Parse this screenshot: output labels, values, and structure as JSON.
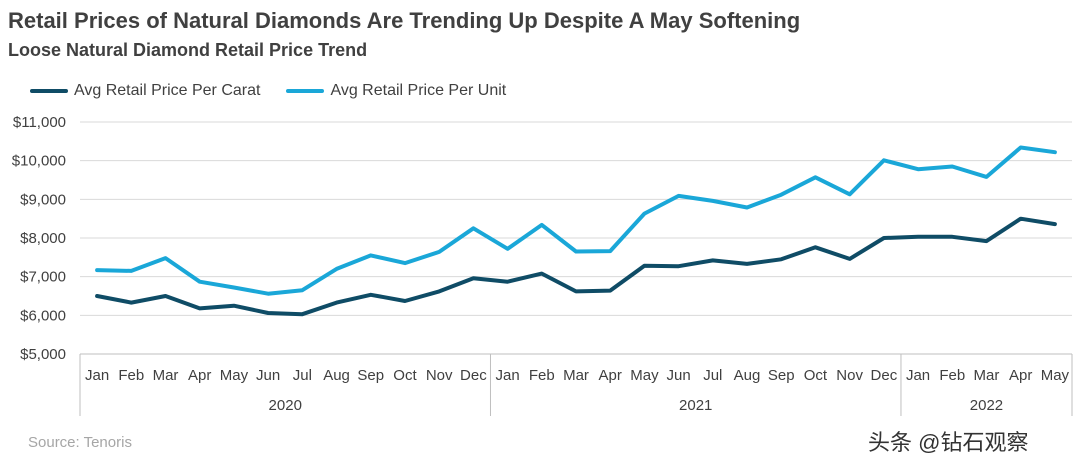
{
  "title": "Retail Prices of Natural Diamonds Are Trending Up Despite A May Softening",
  "subtitle": "Loose Natural Diamond Retail Price Trend",
  "source": "Source: Tenoris",
  "watermark": "头条 @钻石观察",
  "colors": {
    "per_carat": "#0f4c66",
    "per_unit": "#1aa7d8"
  },
  "chart_data": {
    "type": "line",
    "title": "Retail Prices of Natural Diamonds Are Trending Up Despite A May Softening",
    "subtitle": "Loose Natural Diamond Retail Price Trend",
    "xlabel": "",
    "ylabel": "",
    "ylim": [
      5000,
      11000
    ],
    "yticks": [
      5000,
      6000,
      7000,
      8000,
      9000,
      10000,
      11000
    ],
    "ytick_labels": [
      "$5,000",
      "$6,000",
      "$7,000",
      "$8,000",
      "$9,000",
      "$10,000",
      "$11,000"
    ],
    "grid": true,
    "legend_position": "top-left",
    "categories": [
      "Jan",
      "Feb",
      "Mar",
      "Apr",
      "May",
      "Jun",
      "Jul",
      "Aug",
      "Sep",
      "Oct",
      "Nov",
      "Dec",
      "Jan",
      "Feb",
      "Mar",
      "Apr",
      "May",
      "Jun",
      "Jul",
      "Aug",
      "Sep",
      "Oct",
      "Nov",
      "Dec",
      "Jan",
      "Feb",
      "Mar",
      "Apr",
      "May"
    ],
    "groups": [
      {
        "label": "2020",
        "count": 12
      },
      {
        "label": "2021",
        "count": 12
      },
      {
        "label": "2022",
        "count": 5
      }
    ],
    "series": [
      {
        "name": "Avg Retail Price Per Carat",
        "values": [
          6500,
          6330,
          6500,
          6180,
          6250,
          6060,
          6030,
          6330,
          6530,
          6370,
          6620,
          6960,
          6870,
          7080,
          6620,
          6640,
          7280,
          7270,
          7420,
          7330,
          7450,
          7760,
          7460,
          8000,
          8030,
          8030,
          7920,
          8500,
          8360
        ]
      },
      {
        "name": "Avg Retail Price Per Unit",
        "values": [
          7170,
          7150,
          7480,
          6870,
          6720,
          6560,
          6650,
          7200,
          7550,
          7350,
          7640,
          8250,
          7720,
          8340,
          7650,
          7660,
          8630,
          9090,
          8960,
          8790,
          9120,
          9570,
          9130,
          10010,
          9780,
          9850,
          9580,
          10340,
          10220
        ]
      }
    ]
  }
}
